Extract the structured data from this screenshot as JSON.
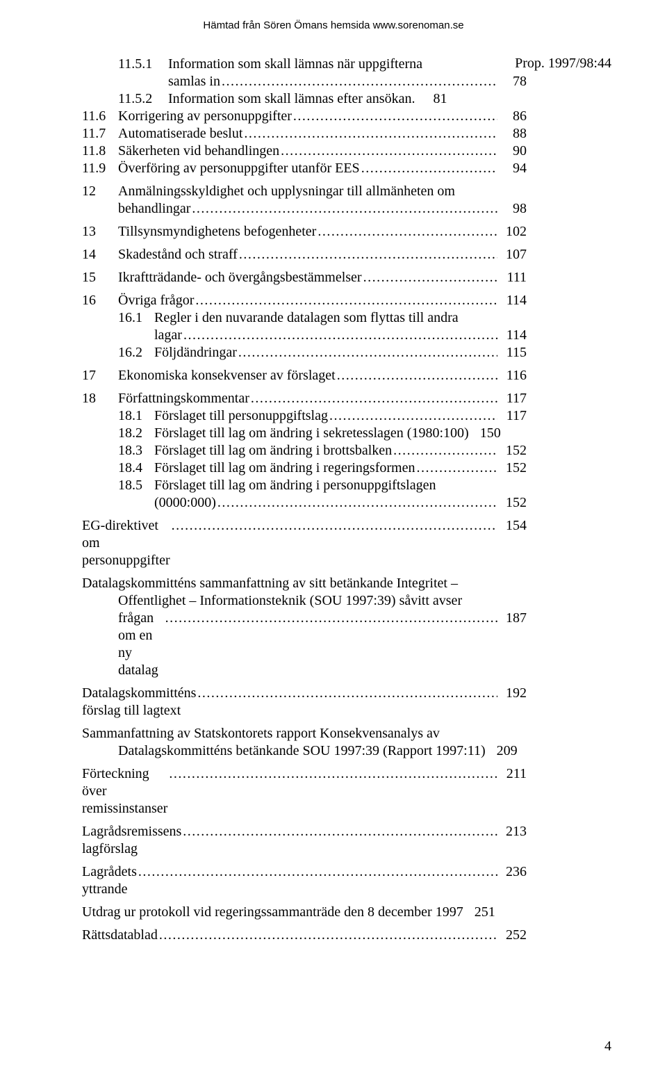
{
  "meta": {
    "header": "Hämtad från Sören Ömans hemsida www.sorenoman.se",
    "right_label": "Prop. 1997/98:44",
    "page_number": "4",
    "dots": "........................................................................................................................................................................................................................"
  },
  "lines": [
    {
      "c1": "",
      "c2": "11.5.1",
      "text": "Information som skall lämnas när uppgifterna",
      "wrap": true
    },
    {
      "c1": "",
      "c2": "",
      "text": "samlas in",
      "page": "78"
    },
    {
      "c1": "",
      "c2": "11.5.2",
      "text": "Information som skall lämnas efter ansökan.",
      "page": "81",
      "noleader": true
    },
    {
      "c1": "11.6",
      "text2": "Korrigering av personuppgifter",
      "page": "86"
    },
    {
      "c1": "11.7",
      "text2": "Automatiserade beslut",
      "page": "88"
    },
    {
      "c1": "11.8",
      "text2": "Säkerheten vid behandlingen",
      "page": "90"
    },
    {
      "c1": "11.9",
      "text2": "Överföring av personuppgifter utanför EES",
      "page": "94"
    },
    {
      "sep": true
    },
    {
      "c1": "12",
      "text2": "Anmälningsskyldighet och upplysningar till allmänheten om",
      "wrap": true
    },
    {
      "c1": "",
      "text2": "behandlingar",
      "page": "98"
    },
    {
      "sep": true
    },
    {
      "c1": "13",
      "text2": "Tillsynsmyndighetens befogenheter",
      "page": "102"
    },
    {
      "sep": true
    },
    {
      "c1": "14",
      "text2": "Skadestånd och straff",
      "page": "107"
    },
    {
      "sep": true
    },
    {
      "c1": "15",
      "text2": "Ikraftträdande- och övergångsbestämmelser",
      "page": "111"
    },
    {
      "sep": true
    },
    {
      "c1": "16",
      "text2": "Övriga frågor",
      "page": "114"
    },
    {
      "c1": "",
      "sub": "16.1",
      "text2": "Regler i den nuvarande datalagen som flyttas till andra",
      "wrap": true
    },
    {
      "c1": "",
      "sub": "",
      "text2": "lagar",
      "page": "114"
    },
    {
      "c1": "",
      "sub": "16.2",
      "text2": "Följdändringar",
      "page": "115"
    },
    {
      "sep": true
    },
    {
      "c1": "17",
      "text2": "Ekonomiska konsekvenser av förslaget",
      "page": "116"
    },
    {
      "sep": true
    },
    {
      "c1": "18",
      "text2": "Författningskommentar",
      "page": "117"
    },
    {
      "c1": "",
      "sub": "18.1",
      "text2": "Förslaget till personuppgiftslag",
      "page": "117"
    },
    {
      "c1": "",
      "sub": "18.2",
      "text2": "Förslaget till lag om ändring i sekretesslagen (1980:100)",
      "page": "150",
      "noleader": true
    },
    {
      "c1": "",
      "sub": "18.3",
      "text2": "Förslaget till lag om ändring i brottsbalken",
      "page": "152"
    },
    {
      "c1": "",
      "sub": "18.4",
      "text2": "Förslaget till lag om ändring i regeringsformen",
      "page": "152"
    },
    {
      "c1": "",
      "sub": "18.5",
      "text2": "Förslaget till lag om ändring i personuppgiftslagen",
      "wrap": true
    },
    {
      "c1": "",
      "sub": "",
      "text2": "(0000:000)",
      "page": "152"
    },
    {
      "sep": true
    },
    {
      "flat": "EG-direktivet om personuppgifter",
      "page": "154"
    },
    {
      "sep": true
    },
    {
      "flat": "Datalagskommitténs sammanfattning av sitt betänkande Integritet –",
      "wrap": true
    },
    {
      "flatindent": "Offentlighet – Informationsteknik (SOU 1997:39) såvitt avser",
      "wrap": true
    },
    {
      "flatindent": "frågan om en ny datalag",
      "page": "187"
    },
    {
      "sep": true
    },
    {
      "flat": "Datalagskommitténs förslag till lagtext",
      "page": "192"
    },
    {
      "sep": true
    },
    {
      "flat": "Sammanfattning av Statskontorets rapport Konsekvensanalys av",
      "wrap": true
    },
    {
      "flatindent": "Datalagskommitténs betänkande SOU 1997:39 (Rapport 1997:11)",
      "page": "209",
      "noleader": true
    },
    {
      "sep": true
    },
    {
      "flat": "Förteckning över remissinstanser",
      "page": "211"
    },
    {
      "sep": true
    },
    {
      "flat": "Lagrådsremissens lagförslag",
      "page": "213"
    },
    {
      "sep": true
    },
    {
      "flat": "Lagrådets yttrande",
      "page": "236"
    },
    {
      "sep": true
    },
    {
      "flat": "Utdrag ur protokoll vid regeringssammanträde den 8 december 1997",
      "page": "251",
      "noleader": true
    },
    {
      "sep": true
    },
    {
      "flat": "Rättsdatablad",
      "page": "252"
    }
  ]
}
